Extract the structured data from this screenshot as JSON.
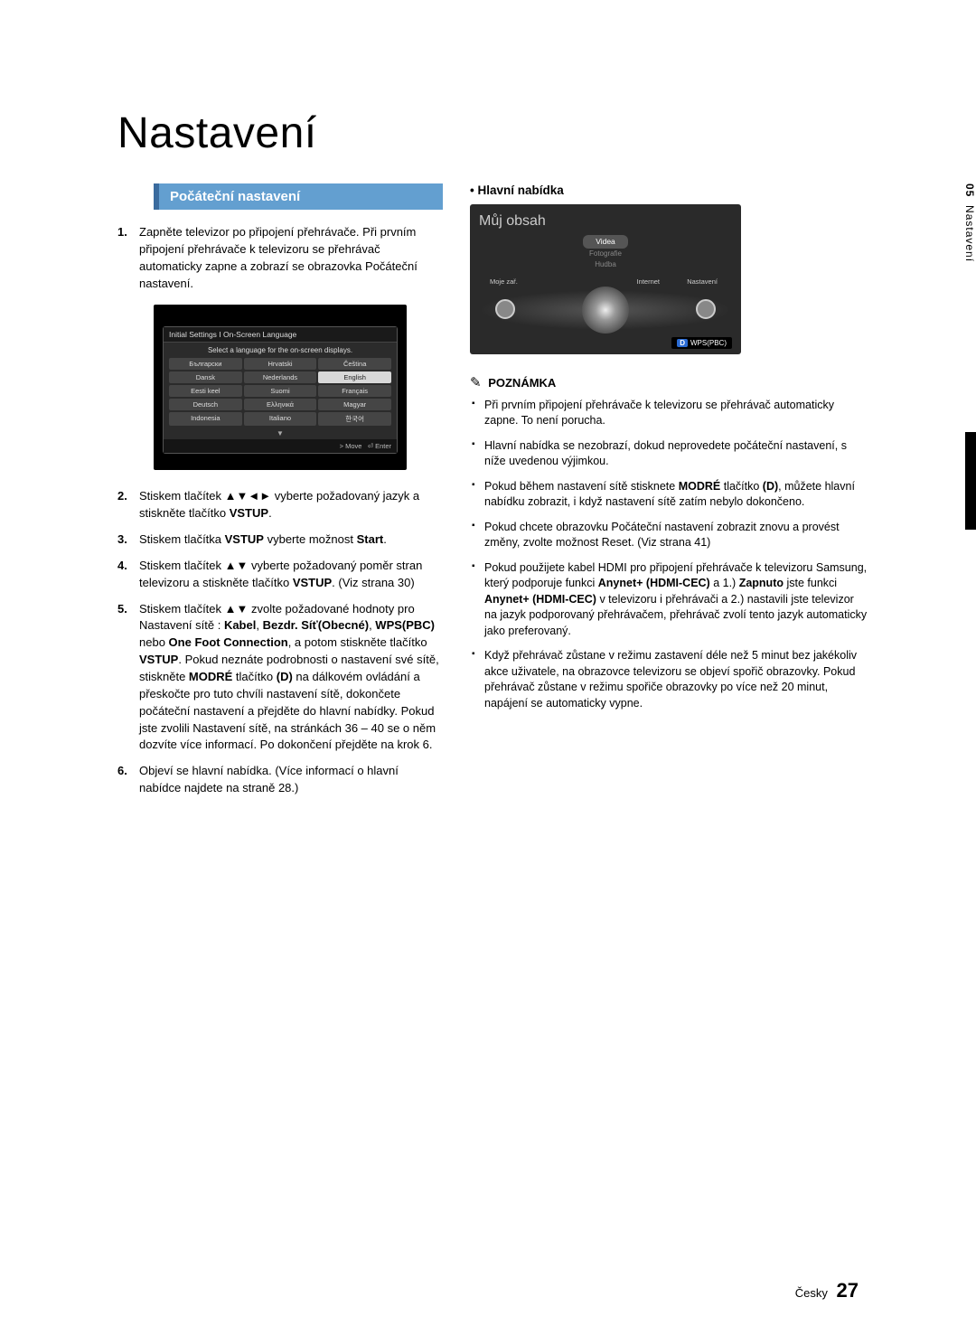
{
  "page": {
    "title": "Nastavení",
    "lang_label": "Česky",
    "page_number": "27",
    "side_tab_num": "05",
    "side_tab_label": "Nastavení"
  },
  "section_header": "Počáteční nastavení",
  "steps": [
    {
      "n": "1.",
      "t": "Zapněte televizor po připojení přehrávače. Při prvním připojení přehrávače k televizoru se přehrávač automaticky zapne a zobrazí se obrazovka Počáteční nastavení."
    },
    {
      "n": "2.",
      "t": "Stiskem tlačítek ▲▼◄► vyberte požadovaný jazyk a stiskněte tlačítko <b>VSTUP</b>."
    },
    {
      "n": "3.",
      "t": "Stiskem tlačítka <b>VSTUP</b> vyberte možnost <b>Start</b>."
    },
    {
      "n": "4.",
      "t": "Stiskem tlačítek ▲▼ vyberte požadovaný poměr stran televizoru a stiskněte tlačítko <b>VSTUP</b>. (Viz strana 30)"
    },
    {
      "n": "5.",
      "t": "Stiskem tlačítek ▲▼ zvolte požadované hodnoty pro Nastavení sítě : <b>Kabel</b>, <b>Bezdr. Síť(Obecné)</b>, <b>WPS(PBC)</b> nebo <b>One Foot Connection</b>, a potom stiskněte tlačítko <b>VSTUP</b>. Pokud neznáte podrobnosti o nastavení své sítě, stiskněte <b>MODRÉ</b> tlačítko <b>(D)</b> na dálkovém ovládání a přeskočte pro tuto chvíli nastavení sítě, dokončete počáteční nastavení a přejděte do hlavní nabídky. Pokud jste zvolili Nastavení sítě, na stránkách 36 – 40 se o něm dozvíte více informací. Po dokončení přejděte na krok 6."
    },
    {
      "n": "6.",
      "t": "Objeví se hlavní nabídka. (Více informací o hlavní nabídce najdete na straně 28.)"
    }
  ],
  "lang_dialog": {
    "title": "Initial Settings I On-Screen Language",
    "sub": "Select a language for the on-screen displays.",
    "rows": [
      [
        "Български",
        "Hrvatski",
        "Čeština"
      ],
      [
        "Dansk",
        "Nederlands",
        "English"
      ],
      [
        "Eesti keel",
        "Suomi",
        "Français"
      ],
      [
        "Deutsch",
        "Ελληνικά",
        "Magyar"
      ],
      [
        "Indonesia",
        "Italiano",
        "한국어"
      ]
    ],
    "selected": "English",
    "footer_move": "> Move",
    "footer_enter": "⏎ Enter"
  },
  "main_menu": {
    "heading": "• Hlavní nabídka",
    "title": "Můj obsah",
    "items": {
      "sel": "Videa",
      "a": "Fotografie",
      "b": "Hudba"
    },
    "labels": {
      "left": "Moje zař.",
      "mid": "Internet",
      "right": "Nastavení"
    },
    "wps": "WPS(PBC)"
  },
  "note_heading": "POZNÁMKA",
  "notes": [
    "Při prvním připojení přehrávače k televizoru se přehrávač automaticky zapne. To není porucha.",
    "Hlavní nabídka se nezobrazí, dokud neprovedete počáteční nastavení, s níže uvedenou výjimkou.",
    "Pokud během nastavení sítě stisknete <b>MODRÉ</b> tlačítko <b>(D)</b>, můžete hlavní nabídku zobrazit, i když nastavení sítě zatím nebylo dokončeno.",
    "Pokud chcete obrazovku Počáteční nastavení zobrazit znovu a provést změny, zvolte možnost Reset. (Viz strana 41)",
    "Pokud použijete kabel HDMI pro připojení přehrávače k televizoru Samsung, který podporuje funkci <b>Anynet+ (HDMI-CEC)</b> a 1.) <b>Zapnuto</b> jste funkci <b>Anynet+ (HDMI-CEC)</b> v televizoru i přehrávači a 2.) nastavili jste televizor na jazyk podporovaný přehrávačem, přehrávač zvolí tento jazyk automaticky jako preferovaný.",
    "Když přehrávač zůstane v režimu zastavení déle než 5 minut bez jakékoliv akce uživatele, na obrazovce televizoru se objeví spořič obrazovky. Pokud přehrávač zůstane v režimu spořiče obrazovky po více než 20 minut, napájení se automaticky vypne."
  ]
}
